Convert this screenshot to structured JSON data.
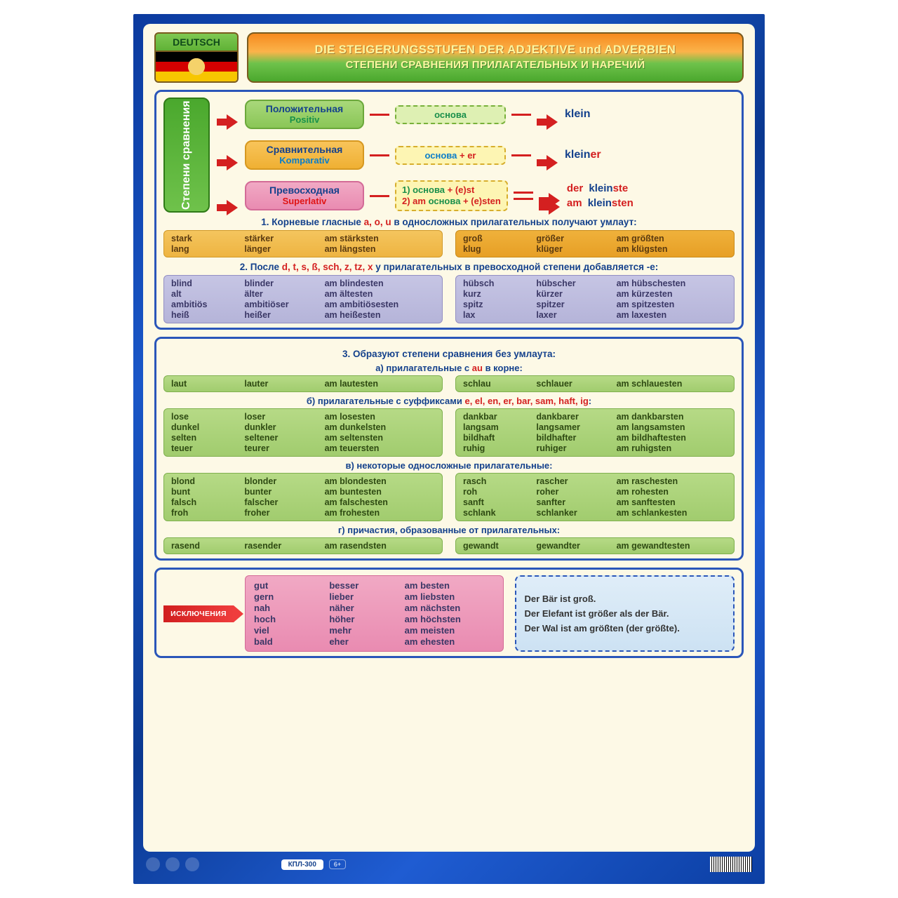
{
  "badge": {
    "language": "DEUTSCH"
  },
  "title": {
    "de": "DIE STEIGERUNGSSTUFEN DER ADJEKTIVE und ADVERBIEN",
    "ru": "СТЕПЕНИ СРАВНЕНИЯ ПРИЛАГАТЕЛЬНЫХ И НАРЕЧИЙ"
  },
  "sidebar_label": "Степени сравнения",
  "degrees": {
    "positiv": {
      "ru": "Положительная",
      "de": "Positiv",
      "formula": "основа",
      "example_root": "klein"
    },
    "komparativ": {
      "ru": "Сравнительная",
      "de": "Komparativ",
      "formula_base": "основа",
      "formula_suffix": "+ er",
      "example_root": "klein",
      "example_suffix": "er"
    },
    "superlativ": {
      "ru": "Превосходная",
      "de": "Superlativ",
      "formula_line1_prefix": "1) ",
      "formula_line1_base": "основа",
      "formula_line1_suffix": " + (e)st",
      "formula_line2_prefix": "2) ",
      "formula_line2_am": "am ",
      "formula_line2_base": "основа",
      "formula_line2_suffix": " + (e)sten",
      "ex1_article": "der",
      "ex1_root": " klein",
      "ex1_suffix": "ste",
      "ex2_am": "am",
      "ex2_root": " klein",
      "ex2_suffix": "sten"
    }
  },
  "section1": {
    "title_pre": "1. Корневые гласные ",
    "title_letters": "a, o, u",
    "title_post": " в односложных прилагательных получают умлаут:",
    "left": [
      [
        "stark",
        "stärker",
        "am stärksten"
      ],
      [
        "lang",
        "länger",
        "am längsten"
      ]
    ],
    "right": [
      [
        "groß",
        "größer",
        "am größten"
      ],
      [
        "klug",
        "klüger",
        "am klügsten"
      ]
    ]
  },
  "section2": {
    "title_pre": "2. После ",
    "title_letters": "d, t, s, ß, sch, z, tz, x",
    "title_post": " у прилагательных в превосходной степени добавляется -e:",
    "left": [
      [
        "blind",
        "blinder",
        "am blindesten"
      ],
      [
        "alt",
        "älter",
        "am ältesten"
      ],
      [
        "ambitiös",
        "ambitiöser",
        "am ambitiösesten"
      ],
      [
        "heiß",
        "heißer",
        "am heißesten"
      ]
    ],
    "right": [
      [
        "hübsch",
        "hübscher",
        "am hübschesten"
      ],
      [
        "kurz",
        "kürzer",
        "am kürzesten"
      ],
      [
        "spitz",
        "spitzer",
        "am spitzesten"
      ],
      [
        "lax",
        "laxer",
        "am laxesten"
      ]
    ]
  },
  "section3": {
    "title": "3. Образуют степени сравнения без умлаута:",
    "a": {
      "title_pre": "а) прилагательные с ",
      "title_em": "au",
      "title_post": " в корне:",
      "left": [
        [
          "laut",
          "lauter",
          "am lautesten"
        ]
      ],
      "right": [
        [
          "schlau",
          "schlauer",
          "am schlauesten"
        ]
      ]
    },
    "b": {
      "title_pre": "б) прилагательные с суффиксами ",
      "title_em": "e, el, en, er, bar, sam, haft, ig",
      "title_post": ":",
      "left": [
        [
          "lose",
          "loser",
          "am losesten"
        ],
        [
          "dunkel",
          "dunkler",
          "am dunkelsten"
        ],
        [
          "selten",
          "seltener",
          "am seltensten"
        ],
        [
          "teuer",
          "teurer",
          "am teuersten"
        ]
      ],
      "right": [
        [
          "dankbar",
          "dankbarer",
          "am dankbarsten"
        ],
        [
          "langsam",
          "langsamer",
          "am langsamsten"
        ],
        [
          "bildhaft",
          "bildhafter",
          "am bildhaftesten"
        ],
        [
          "ruhig",
          "ruhiger",
          "am ruhigsten"
        ]
      ]
    },
    "c": {
      "title": "в) некоторые односложные прилагательные:",
      "left": [
        [
          "blond",
          "blonder",
          "am blondesten"
        ],
        [
          "bunt",
          "bunter",
          "am buntesten"
        ],
        [
          "falsch",
          "falscher",
          "am falschesten"
        ],
        [
          "froh",
          "froher",
          "am frohesten"
        ]
      ],
      "right": [
        [
          "rasch",
          "rascher",
          "am raschesten"
        ],
        [
          "roh",
          "roher",
          "am rohesten"
        ],
        [
          "sanft",
          "sanfter",
          "am sanftesten"
        ],
        [
          "schlank",
          "schlanker",
          "am schlankesten"
        ]
      ]
    },
    "d": {
      "title": "г) причастия, образованные от прилагательных:",
      "left": [
        [
          "rasend",
          "rasender",
          "am rasendsten"
        ]
      ],
      "right": [
        [
          "gewandt",
          "gewandter",
          "am gewandtesten"
        ]
      ]
    }
  },
  "exceptions": {
    "label": "ИСКЛЮЧЕНИЯ",
    "rows": [
      [
        "gut",
        "besser",
        "am besten"
      ],
      [
        "gern",
        "lieber",
        "am liebsten"
      ],
      [
        "nah",
        "näher",
        "am nächsten"
      ],
      [
        "hoch",
        "höher",
        "am höchsten"
      ],
      [
        "viel",
        "mehr",
        "am meisten"
      ],
      [
        "bald",
        "eher",
        "am ehesten"
      ]
    ]
  },
  "examples": {
    "s1": "Der Bär ist groß.",
    "s2": "Der Elefant ist größer als der Bär.",
    "s3": "Der Wal ist am größten (der größte)."
  },
  "footer": {
    "code": "КПЛ-300",
    "age": "6+"
  }
}
